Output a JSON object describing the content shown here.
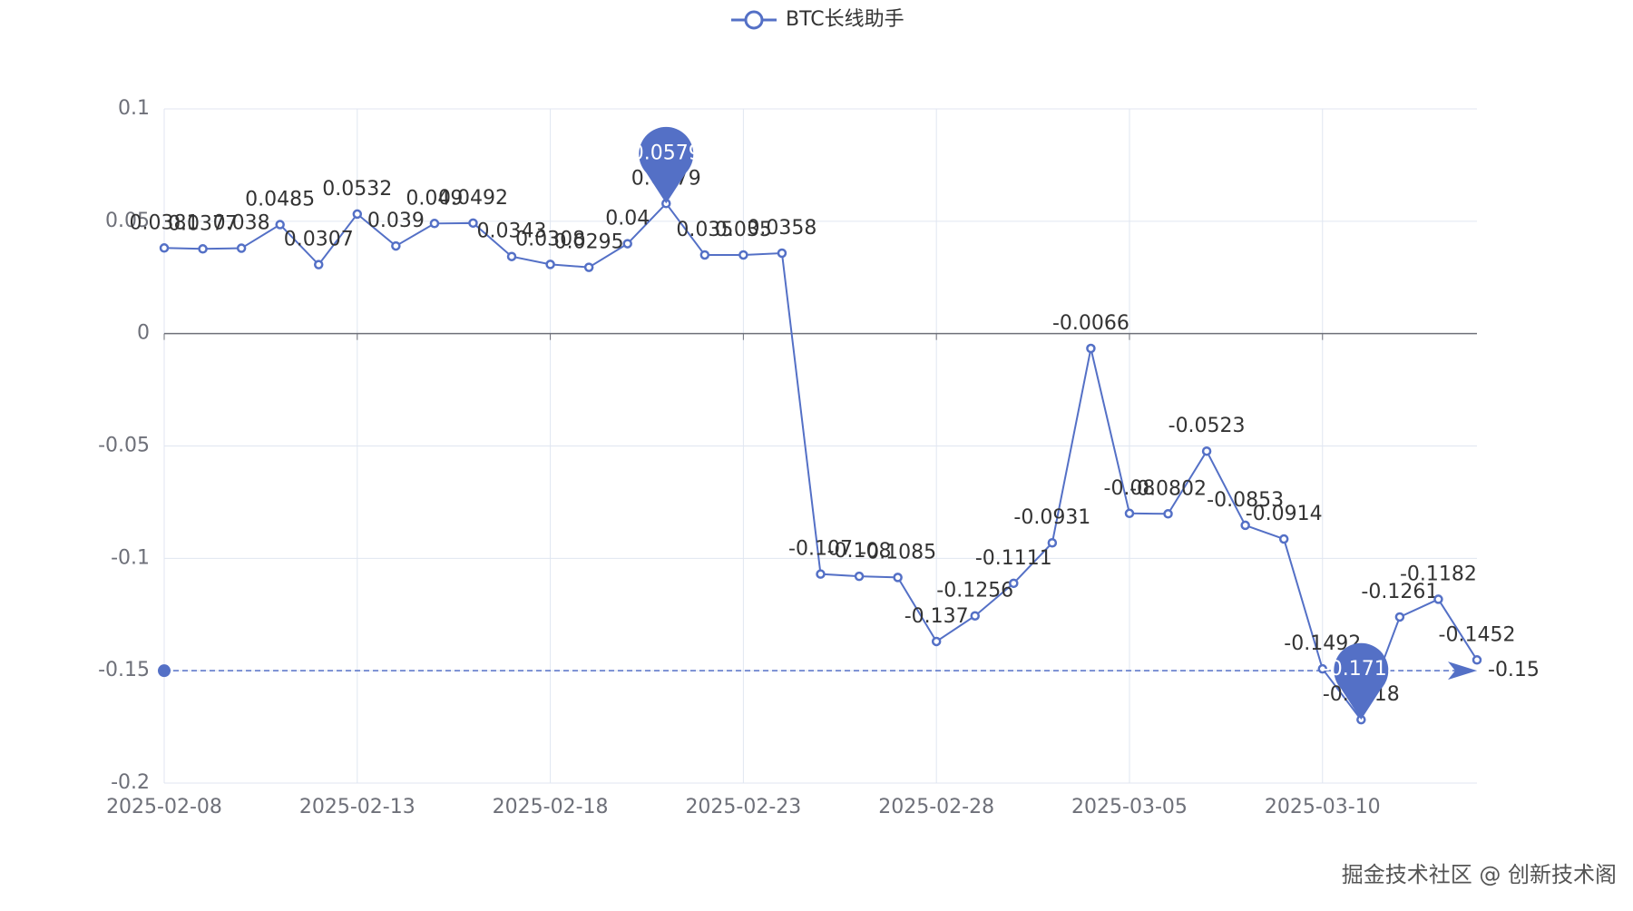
{
  "chart_data": {
    "type": "line",
    "legend": "BTC长线助手",
    "categories": [
      "2025-02-08",
      null,
      null,
      null,
      null,
      "2025-02-13",
      null,
      null,
      null,
      null,
      "2025-02-18",
      null,
      null,
      null,
      null,
      "2025-02-23",
      null,
      null,
      null,
      null,
      "2025-02-28",
      null,
      null,
      null,
      null,
      "2025-03-05",
      null,
      null,
      null,
      null,
      "2025-03-10",
      null,
      null,
      null,
      null
    ],
    "series": [
      {
        "name": "BTC长线助手",
        "color": "#5470c6",
        "values": [
          0.0381,
          0.0377,
          0.038,
          0.0485,
          0.0307,
          0.0532,
          0.039,
          0.049,
          0.0492,
          0.0343,
          0.0308,
          0.0295,
          0.04,
          0.0579,
          0.035,
          0.035,
          0.0358,
          -0.107,
          -0.108,
          -0.1085,
          -0.137,
          -0.1256,
          -0.1111,
          -0.0931,
          -0.0066,
          -0.08,
          -0.0802,
          -0.0523,
          -0.0853,
          -0.0914,
          -0.1492,
          -0.1718,
          -0.1261,
          -0.1182,
          -0.1452
        ]
      }
    ],
    "mark_points": [
      {
        "index": 13,
        "value": 0.0579
      },
      {
        "index": 31,
        "value": -0.1718
      }
    ],
    "mark_line": {
      "value": -0.15
    },
    "ylim": [
      -0.2,
      0.1
    ],
    "yticks": [
      -0.2,
      -0.15,
      -0.1,
      -0.05,
      0,
      0.05,
      0.1
    ],
    "grid": true,
    "watermark": "掘金技术社区 @ 创新技术阁"
  }
}
